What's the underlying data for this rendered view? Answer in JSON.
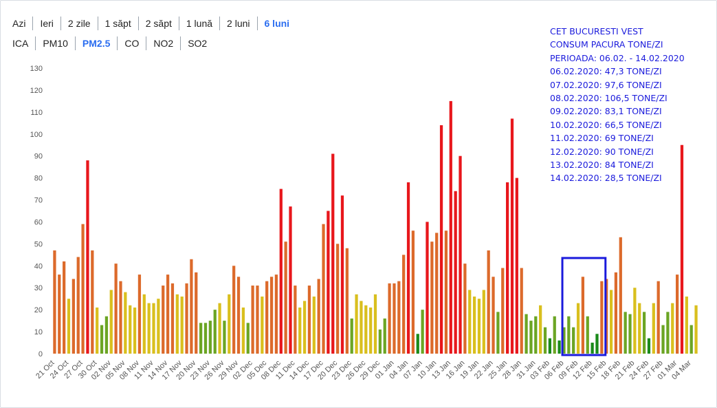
{
  "period_tabs": [
    {
      "label": "Azi",
      "active": false
    },
    {
      "label": "Ieri",
      "active": false
    },
    {
      "label": "2 zile",
      "active": false
    },
    {
      "label": "1 săpt",
      "active": false
    },
    {
      "label": "2 săpt",
      "active": false
    },
    {
      "label": "1 lună",
      "active": false
    },
    {
      "label": "2 luni",
      "active": false
    },
    {
      "label": "6 luni",
      "active": true
    }
  ],
  "pollutant_tabs": [
    {
      "label": "ICA",
      "active": false
    },
    {
      "label": "PM10",
      "active": false
    },
    {
      "label": "PM2.5",
      "active": true
    },
    {
      "label": "CO",
      "active": false
    },
    {
      "label": "NO2",
      "active": false
    },
    {
      "label": "SO2",
      "active": false
    }
  ],
  "annotation": {
    "lines": [
      "CET BUCURESTI VEST",
      "CONSUM PACURA TONE/ZI",
      "PERIOADA: 06.02. - 14.02.2020",
      "06.02.2020: 47,3 TONE/ZI",
      "07.02.2020: 97,6 TONE/ZI",
      "08.02.2020: 106,5 TONE/ZI",
      "09.02.2020: 83,1 TONE/ZI",
      "10.02.2020: 66,5 TONE/ZI",
      "11.02.2020: 69 TONE/ZI",
      "12.02.2020: 90 TONE/ZI",
      "13.02.2020: 84 TONE/ZI",
      "14.02.2020: 28,5 TONE/ZI"
    ],
    "color": "#1a1adc",
    "highlight_range": [
      "06 Feb",
      "14 Feb"
    ]
  },
  "colors": {
    "dark_green": "#1a8a1a",
    "green": "#6ba524",
    "yellow": "#d9bf1e",
    "orange": "#dc6a2b",
    "red": "#e8171c",
    "highlight_box": "#1a1adc"
  },
  "chart_data": {
    "type": "bar",
    "ylim": [
      0,
      130
    ],
    "yticks": [
      0,
      10,
      20,
      30,
      40,
      50,
      60,
      70,
      80,
      90,
      100,
      110,
      120,
      130
    ],
    "xtick_labels": [
      "21 Oct",
      "24 Oct",
      "27 Oct",
      "30 Oct",
      "02 Nov",
      "05 Nov",
      "08 Nov",
      "11 Nov",
      "14 Nov",
      "17 Nov",
      "20 Nov",
      "23 Nov",
      "26 Nov",
      "29 Nov",
      "02 Dec",
      "05 Dec",
      "08 Dec",
      "11 Dec",
      "14 Dec",
      "17 Dec",
      "20 Dec",
      "23 Dec",
      "26 Dec",
      "29 Dec",
      "01 Jan",
      "04 Jan",
      "07 Jan",
      "10 Jan",
      "13 Jan",
      "16 Jan",
      "19 Jan",
      "22 Jan",
      "25 Jan",
      "28 Jan",
      "31 Jan",
      "03 Feb",
      "06 Feb",
      "09 Feb",
      "12 Feb",
      "15 Feb",
      "18 Feb",
      "21 Feb",
      "24 Feb",
      "27 Feb",
      "01 Mar",
      "04 Mar"
    ],
    "values": [
      47,
      36,
      42,
      25,
      34,
      44,
      59,
      88,
      47,
      21,
      13,
      17,
      29,
      41,
      33,
      28,
      22,
      21,
      36,
      27,
      23,
      23,
      25,
      31,
      36,
      32,
      27,
      26,
      32,
      43,
      37,
      14,
      14,
      15,
      20,
      23,
      15,
      27,
      40,
      35,
      21,
      14,
      31,
      31,
      26,
      33,
      35,
      36,
      75,
      51,
      67,
      31,
      21,
      24,
      31,
      26,
      34,
      59,
      65,
      91,
      50,
      72,
      48,
      16,
      27,
      24,
      22,
      21,
      27,
      11,
      16,
      32,
      32,
      33,
      45,
      78,
      56,
      9,
      20,
      60,
      51,
      55,
      104,
      56,
      115,
      74,
      90,
      41,
      29,
      26,
      25,
      29,
      47,
      35,
      19,
      39,
      78,
      107,
      80,
      39,
      18,
      15,
      17,
      22,
      12,
      7,
      17,
      6,
      12,
      17,
      12,
      23,
      35,
      17,
      5,
      9,
      33,
      34,
      29,
      37,
      53,
      19,
      18,
      30,
      23,
      19,
      7,
      23,
      33,
      13,
      19,
      23,
      36,
      95,
      26,
      13,
      22
    ]
  }
}
